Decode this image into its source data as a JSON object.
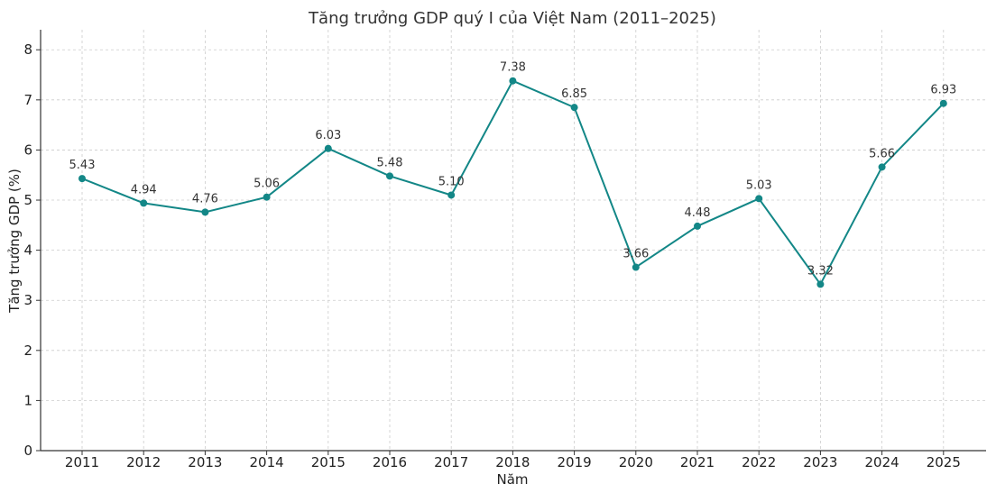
{
  "chart_data": {
    "type": "line",
    "title": "Tăng trưởng GDP quý I của Việt Nam (2011–2025)",
    "xlabel": "Năm",
    "ylabel": "Tăng trưởng GDP (%)",
    "categories": [
      "2011",
      "2012",
      "2013",
      "2014",
      "2015",
      "2016",
      "2017",
      "2018",
      "2019",
      "2020",
      "2021",
      "2022",
      "2023",
      "2024",
      "2025"
    ],
    "series": [
      {
        "name": "Tăng trưởng GDP quý I",
        "values": [
          5.43,
          4.94,
          4.76,
          5.06,
          6.03,
          5.48,
          5.1,
          7.38,
          6.85,
          3.66,
          4.48,
          5.03,
          3.32,
          5.66,
          6.93
        ],
        "labels": [
          "5.43",
          "4.94",
          "4.76",
          "5.06",
          "6.03",
          "5.48",
          "5.10",
          "7.38",
          "6.85",
          "3.66",
          "4.48",
          "5.03",
          "3.32",
          "5.66",
          "6.93"
        ],
        "color": "#138787"
      }
    ],
    "ylim": [
      0,
      8.4
    ],
    "yticks": [
      "0",
      "1",
      "2",
      "3",
      "4",
      "5",
      "6",
      "7",
      "8"
    ],
    "grid": true,
    "legend": "none"
  }
}
